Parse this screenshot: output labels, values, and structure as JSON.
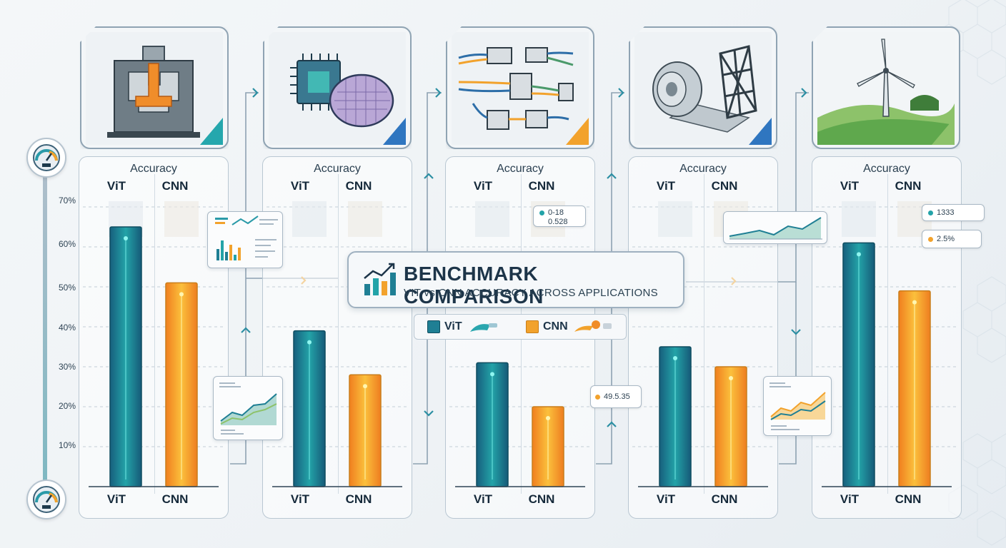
{
  "title": "BENCHMARK COMPARISON",
  "subtitle": "VIT vs CNN ACCURACY ACROSS APPLICATIONS",
  "panel_header": "Accuracy",
  "legend": [
    {
      "label": "ViT",
      "color": "#1f7f94"
    },
    {
      "label": "CNN",
      "color": "#f2a22c"
    }
  ],
  "y_ticks": [
    "70%",
    "60%",
    "50%",
    "40%",
    "30%",
    "20%",
    "10%"
  ],
  "tags": {
    "t1_line1": "0-18",
    "t1_line2": "0.528",
    "t2": "49.5.35",
    "t3": "1333",
    "t4": "2.5%"
  },
  "icons": [
    "injection-molding-icon",
    "semiconductor-wafer-icon",
    "wire-harness-connectors-icon",
    "steel-coil-structure-icon",
    "wind-turbine-icon"
  ],
  "chart_data": {
    "type": "bar",
    "title": "BENCHMARK COMPARISON",
    "subtitle": "VIT vs CNN ACCURACY ACROSS APPLICATIONS",
    "ylabel": "Accuracy",
    "ylim": [
      0,
      70
    ],
    "y_unit": "%",
    "grid": true,
    "legend_position": "center",
    "categories": [
      "",
      "",
      "",
      "",
      ""
    ],
    "series": [
      {
        "name": "ViT",
        "color": "#1f7f94",
        "values": [
          65,
          39,
          31,
          35,
          61
        ]
      },
      {
        "name": "CNN",
        "color": "#f2a22c",
        "values": [
          51,
          28,
          20,
          30,
          49
        ]
      }
    ]
  }
}
